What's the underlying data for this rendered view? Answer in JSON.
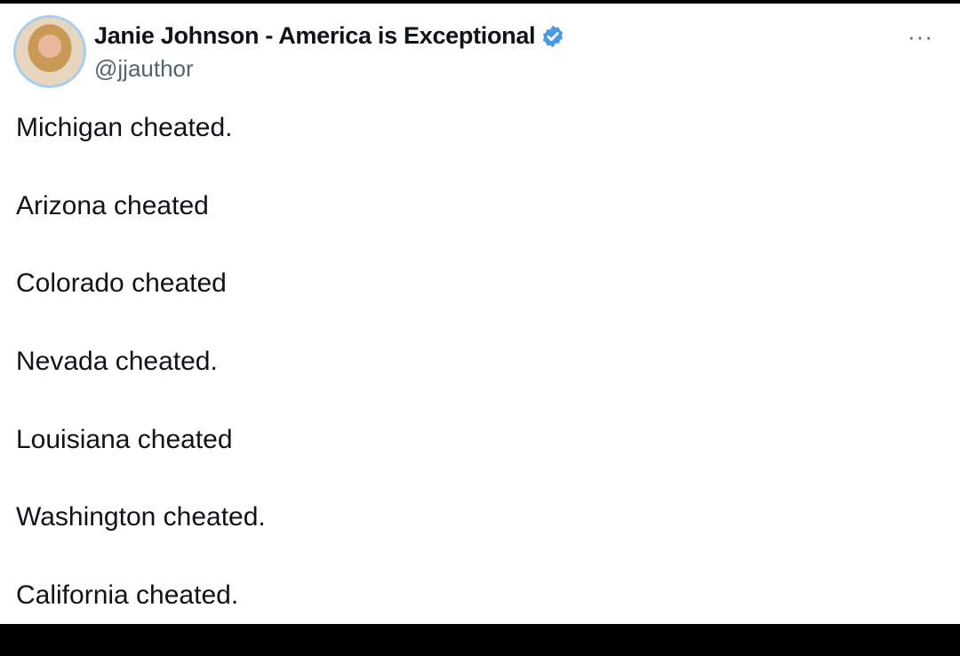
{
  "author": {
    "display_name": "Janie Johnson - America is Exceptional",
    "handle": "@jjauthor",
    "verified": true,
    "badge_color": "#4a99e9"
  },
  "more_icon": "···",
  "tweet_lines": [
    "Michigan cheated.",
    "Arizona cheated",
    "Colorado cheated",
    "Nevada cheated.",
    "Louisiana cheated",
    "Washington cheated.",
    "California cheated."
  ]
}
